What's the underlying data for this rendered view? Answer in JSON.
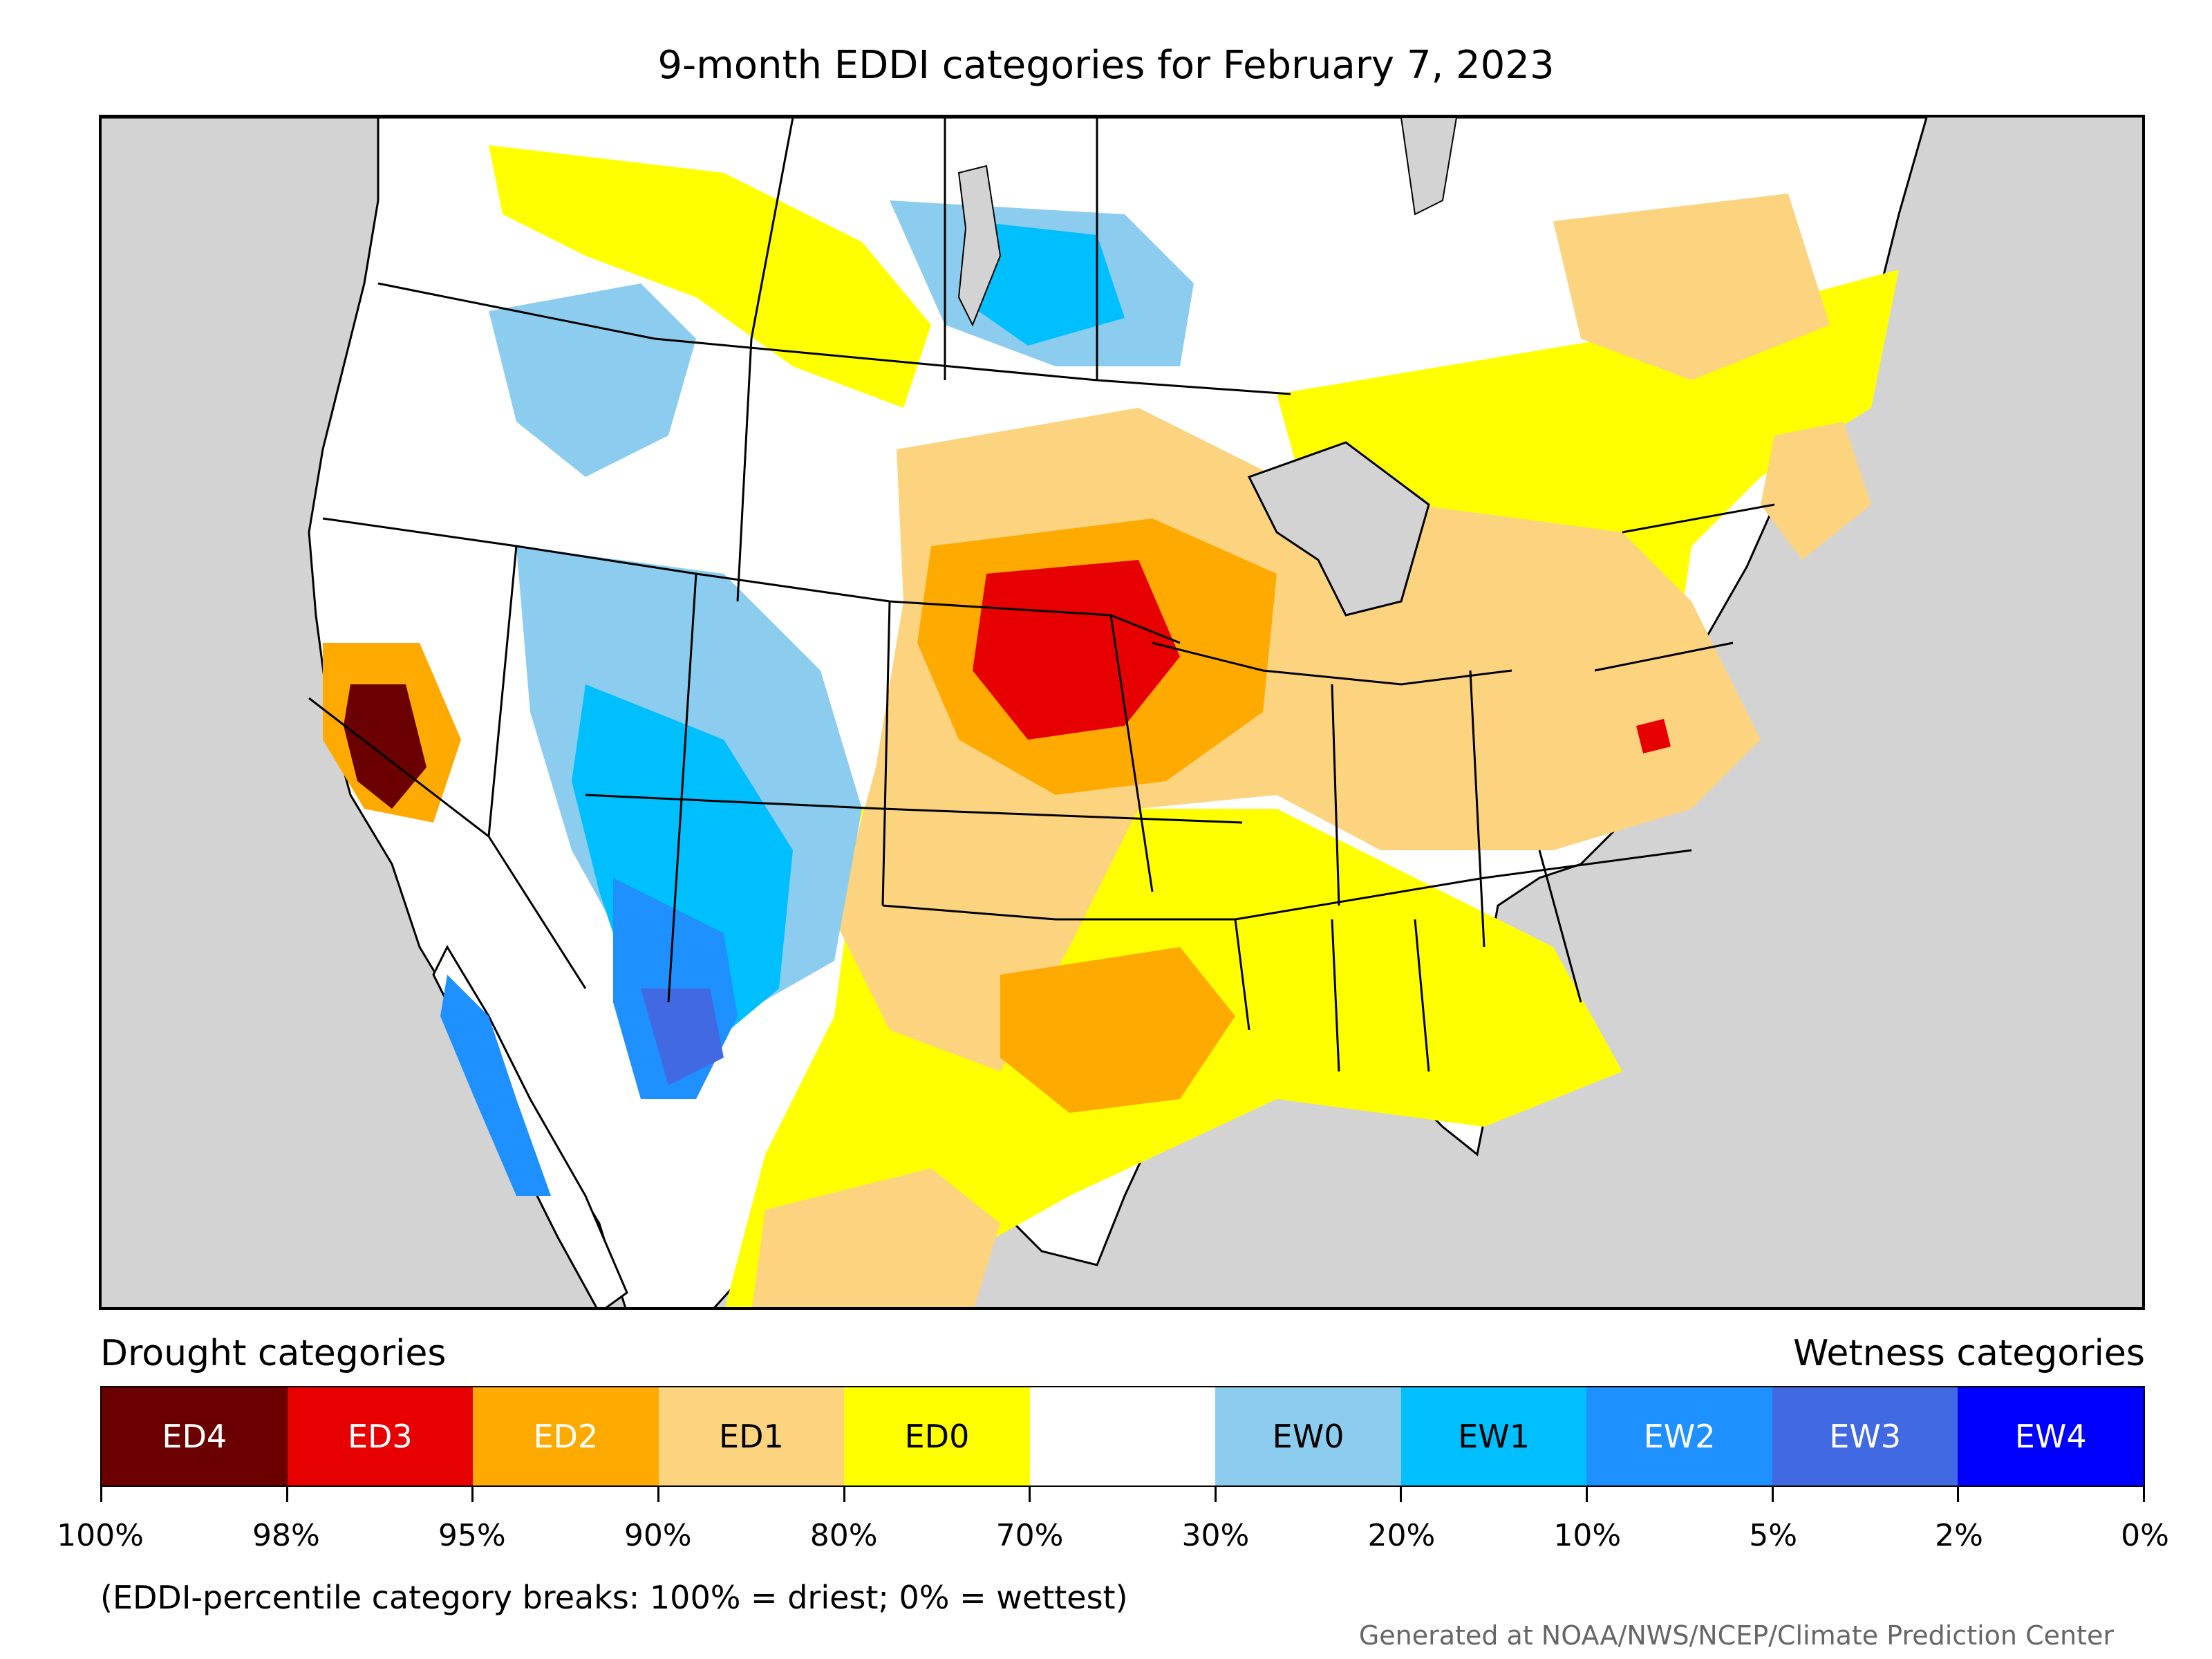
{
  "title": "9-month EDDI categories for February 7, 2023",
  "legend": {
    "drought_title": "Drought categories",
    "wetness_title": "Wetness categories",
    "categories": [
      {
        "label": "ED4",
        "color": "#6b0000",
        "text_color": "#ffffff"
      },
      {
        "label": "ED3",
        "color": "#e60000",
        "text_color": "#ffffff"
      },
      {
        "label": "ED2",
        "color": "#ffaa00",
        "text_color": "#ffffff"
      },
      {
        "label": "ED1",
        "color": "#fcd37f",
        "text_color": "#000000"
      },
      {
        "label": "ED0",
        "color": "#ffff00",
        "text_color": "#000000"
      },
      {
        "label": "",
        "color": "#ffffff",
        "text_color": "#000000"
      },
      {
        "label": "EW0",
        "color": "#8ccdef",
        "text_color": "#000000"
      },
      {
        "label": "EW1",
        "color": "#00bfff",
        "text_color": "#000000"
      },
      {
        "label": "EW2",
        "color": "#1e90ff",
        "text_color": "#ffffff"
      },
      {
        "label": "EW3",
        "color": "#4169e1",
        "text_color": "#ffffff"
      },
      {
        "label": "EW4",
        "color": "#0000ff",
        "text_color": "#ffffff"
      }
    ],
    "tick_labels": [
      "100%",
      "98%",
      "95%",
      "90%",
      "80%",
      "70%",
      "30%",
      "20%",
      "10%",
      "5%",
      "2%",
      "0%"
    ]
  },
  "note": "(EDDI-percentile category breaks: 100% = driest; 0% = wettest)",
  "credit": "Generated at NOAA/NWS/NCEP/Climate Prediction Center",
  "colors": {
    "background_ocean": "#d3d3d3",
    "land": "#ffffff",
    "border": "#000000"
  }
}
